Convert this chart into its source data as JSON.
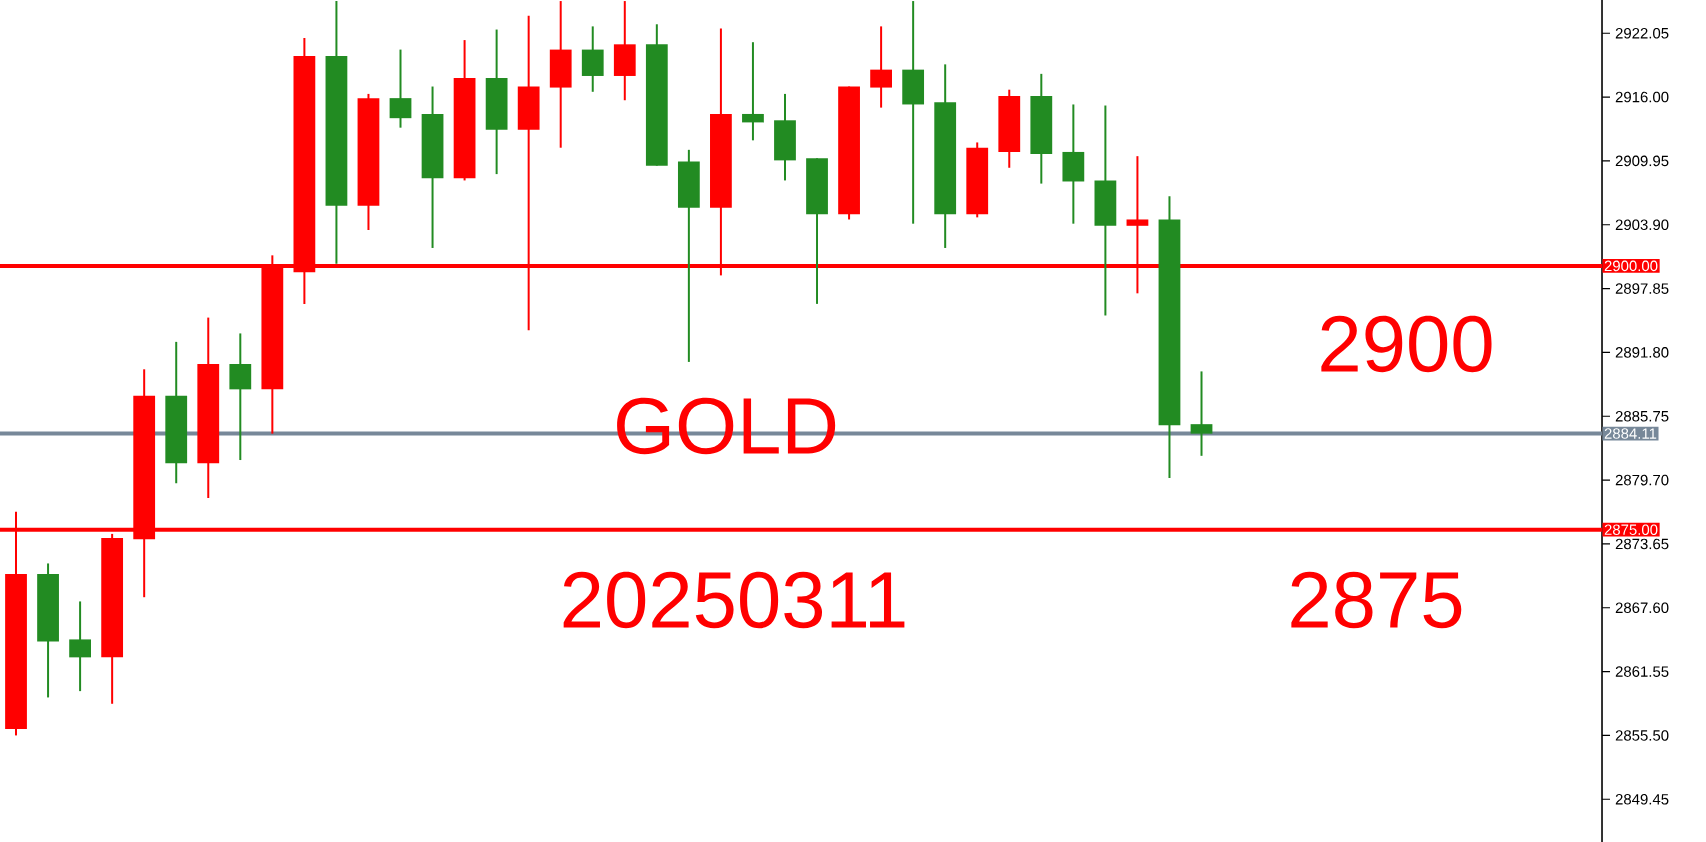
{
  "chart_data": {
    "type": "candlestick",
    "categories": [
      null,
      null,
      null,
      null,
      null,
      null,
      null,
      null,
      null,
      null,
      null,
      null,
      null,
      null,
      null,
      null,
      null,
      null,
      null,
      null,
      null,
      null,
      null,
      null,
      null,
      null,
      null,
      null,
      null,
      null,
      null,
      null,
      null,
      null,
      null,
      null,
      null,
      null,
      null,
      null,
      null,
      null,
      null,
      null,
      null,
      null,
      null,
      null,
      null,
      null
    ],
    "ohlc": [
      [
        2856.1,
        2876.7,
        2855.5,
        2870.8
      ],
      [
        2870.8,
        2871.8,
        2859.1,
        2864.4
      ],
      [
        2864.6,
        2868.2,
        2859.7,
        2862.9
      ],
      [
        2862.9,
        2874.6,
        2858.5,
        2874.2
      ],
      [
        2874.1,
        2890.2,
        2868.6,
        2887.7
      ],
      [
        2887.7,
        2892.8,
        2879.4,
        2881.3
      ],
      [
        2881.3,
        2895.1,
        2878.0,
        2890.7
      ],
      [
        2890.7,
        2893.6,
        2881.6,
        2888.3
      ],
      [
        2888.3,
        2901.0,
        2884.1,
        2900.0
      ],
      [
        2899.4,
        2921.6,
        2896.4,
        2919.9
      ],
      [
        2919.9,
        2925.1,
        2900.2,
        2905.7
      ],
      [
        2905.7,
        2916.3,
        2903.4,
        2915.9
      ],
      [
        2915.9,
        2920.5,
        2913.1,
        2914.0
      ],
      [
        2914.4,
        2917.0,
        2901.7,
        2908.3
      ],
      [
        2908.3,
        2921.4,
        2908.1,
        2917.8
      ],
      [
        2917.8,
        2922.4,
        2908.7,
        2912.9
      ],
      [
        2912.9,
        2923.7,
        2893.9,
        2917.0
      ],
      [
        2916.9,
        2925.1,
        2911.2,
        2920.5
      ],
      [
        2920.5,
        2922.7,
        2916.5,
        2918.0
      ],
      [
        2918.0,
        2925.1,
        2915.7,
        2921.0
      ],
      [
        2921.0,
        2922.9,
        2909.5,
        2909.5
      ],
      [
        2909.9,
        2911.0,
        2890.9,
        2905.5
      ],
      [
        2905.5,
        2922.5,
        2899.1,
        2914.4
      ],
      [
        2914.4,
        2921.2,
        2911.9,
        2913.6
      ],
      [
        2913.8,
        2916.3,
        2908.1,
        2910.0
      ],
      [
        2910.2,
        2910.2,
        2896.4,
        2904.9
      ],
      [
        2904.9,
        2917.0,
        2904.4,
        2917.0
      ],
      [
        2916.9,
        2922.7,
        2915.0,
        2918.6
      ],
      [
        2918.6,
        2925.1,
        2904.0,
        2915.3
      ],
      [
        2915.5,
        2919.1,
        2901.7,
        2904.9
      ],
      [
        2904.9,
        2911.7,
        2904.6,
        2911.2
      ],
      [
        2910.8,
        2916.7,
        2909.3,
        2916.1
      ],
      [
        2916.1,
        2918.2,
        2907.8,
        2910.6
      ],
      [
        2910.8,
        2915.3,
        2904.0,
        2908.0
      ],
      [
        2908.1,
        2915.2,
        2895.3,
        2903.8
      ],
      [
        2903.8,
        2910.4,
        2897.4,
        2904.4
      ],
      [
        2904.4,
        2906.6,
        2879.9,
        2884.9
      ],
      [
        2885.0,
        2890.0,
        2882.0,
        2884.1
      ],
      null,
      null,
      null,
      null,
      null,
      null,
      null,
      null,
      null,
      null,
      null,
      null
    ],
    "colors": [
      "#ff0000",
      "#228b22",
      "#228b22",
      "#ff0000",
      "#ff0000",
      "#228b22",
      "#ff0000",
      "#228b22",
      "#ff0000",
      "#ff0000",
      "#228b22",
      "#ff0000",
      "#228b22",
      "#228b22",
      "#ff0000",
      "#228b22",
      "#ff0000",
      "#ff0000",
      "#228b22",
      "#ff0000",
      "#228b22",
      "#228b22",
      "#ff0000",
      "#228b22",
      "#228b22",
      "#228b22",
      "#ff0000",
      "#ff0000",
      "#228b22",
      "#228b22",
      "#ff0000",
      "#ff0000",
      "#228b22",
      "#228b22",
      "#228b22",
      "#ff0000",
      "#228b22",
      "#228b22",
      null,
      null,
      null,
      null,
      null,
      null,
      null,
      null,
      null,
      null,
      null,
      null
    ],
    "ylim": [
      2845.4,
      2925.2
    ],
    "yticks": [
      {
        "value": 2922.05,
        "label": "2922.05"
      },
      {
        "value": 2916.0,
        "label": "2916.00"
      },
      {
        "value": 2909.95,
        "label": "2909.95"
      },
      {
        "value": 2903.9,
        "label": "2903.90"
      },
      {
        "value": 2897.85,
        "label": "2897.85"
      },
      {
        "value": 2891.8,
        "label": "2891.80"
      },
      {
        "value": 2885.75,
        "label": "2885.75"
      },
      {
        "value": 2879.7,
        "label": "2879.70"
      },
      {
        "value": 2873.65,
        "label": "2873.65"
      },
      {
        "value": 2867.6,
        "label": "2867.60"
      },
      {
        "value": 2861.55,
        "label": "2861.55"
      },
      {
        "value": 2855.5,
        "label": "2855.50"
      },
      {
        "value": 2849.45,
        "label": "2849.45"
      }
    ],
    "ref_lines": [
      {
        "axis": "y",
        "value": 2900,
        "label": "2900.00",
        "color": "#ff0000"
      },
      {
        "axis": "y",
        "value": 2875,
        "label": "2875.00",
        "color": "#ff0000"
      },
      {
        "axis": "y",
        "value": 2884.11,
        "label": "2884.11",
        "color": "#778899"
      }
    ],
    "annotations": [
      "GOLD",
      "20250311",
      "2900",
      "2875"
    ]
  }
}
